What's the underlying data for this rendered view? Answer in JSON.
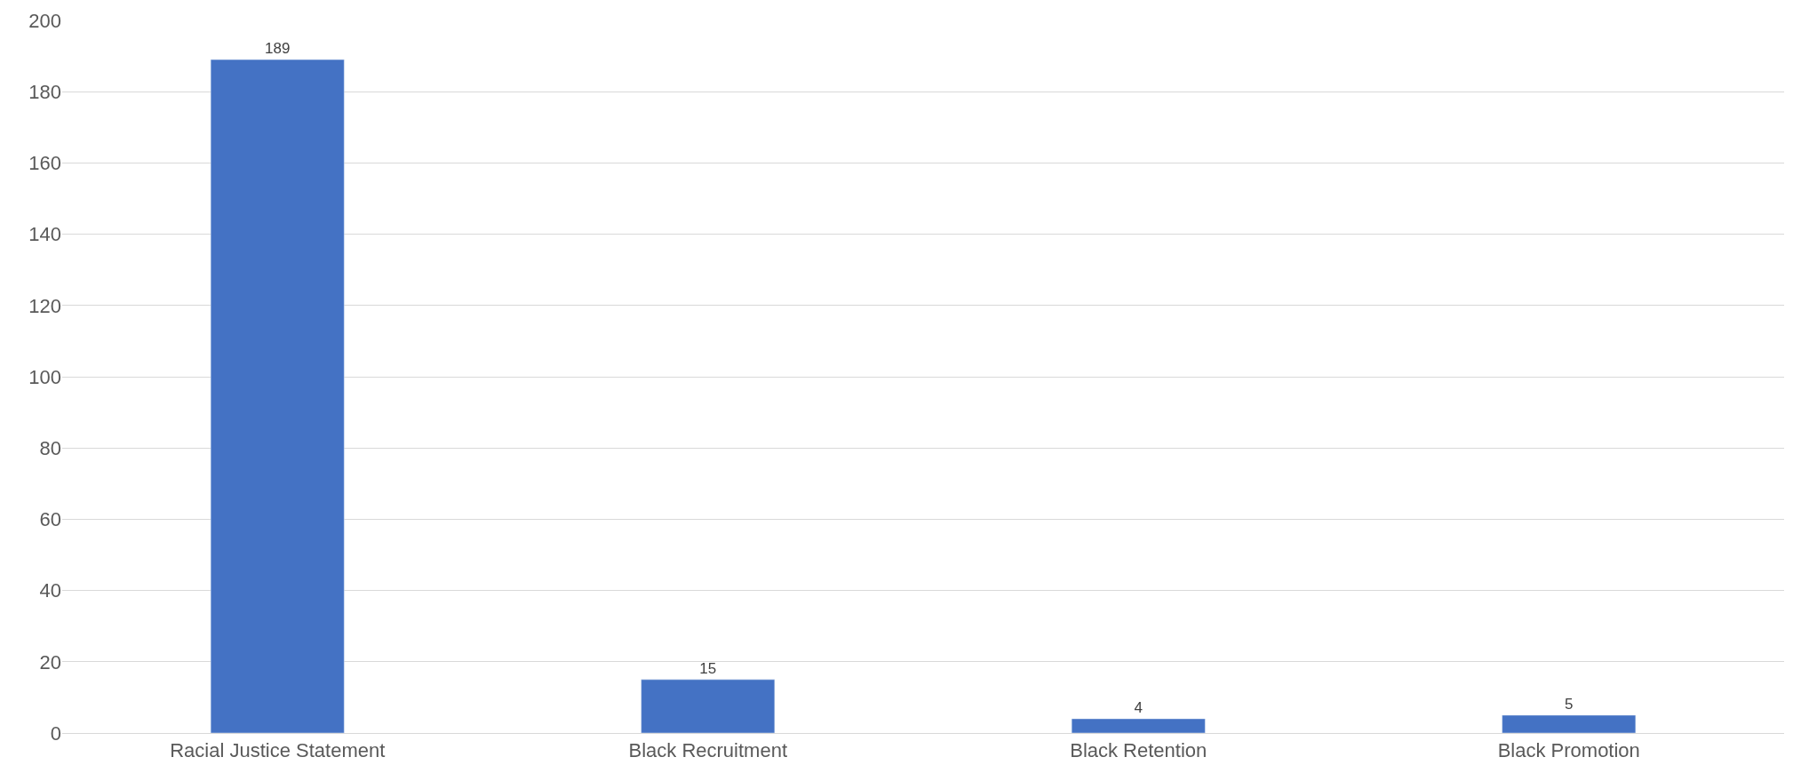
{
  "chart_data": {
    "type": "bar",
    "categories": [
      "Racial Justice Statement",
      "Black Recruitment",
      "Black Retention",
      "Black Promotion"
    ],
    "values": [
      189,
      15,
      4,
      5
    ],
    "color": "#4472c4",
    "ylim": [
      0,
      200
    ],
    "yticks": [
      0,
      20,
      40,
      60,
      80,
      100,
      120,
      140,
      160,
      180,
      200
    ],
    "grid": "y",
    "data_labels": true,
    "legend": false
  }
}
